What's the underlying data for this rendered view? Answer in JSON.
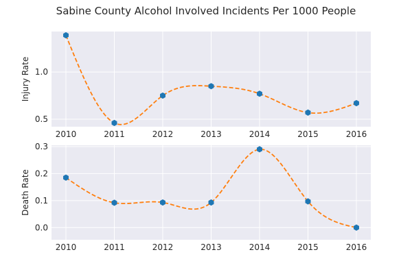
{
  "chart_data": {
    "type": "line",
    "title": "Sabine County Alcohol Involved Incidents Per 1000 People",
    "colors": {
      "marker": "#1f77b4",
      "curve": "#ff7f0e",
      "background": "#eaeaf2"
    },
    "subplots": [
      {
        "id": "injury",
        "ylabel": "Injury Rate",
        "x": [
          2010,
          2011,
          2012,
          2013,
          2014,
          2015,
          2016
        ],
        "xticks": [
          "2010",
          "2011",
          "2012",
          "2013",
          "2014",
          "2015",
          "2016"
        ],
        "values": [
          1.39,
          0.46,
          0.75,
          0.85,
          0.77,
          0.57,
          0.67
        ],
        "ylim": [
          0.42,
          1.43
        ],
        "yticks": [
          0.5,
          1.0
        ],
        "ytick_labels": [
          "0.5",
          "1.0"
        ],
        "marker": "hexagon",
        "fit": "dashed smooth spline"
      },
      {
        "id": "death",
        "ylabel": "Death Rate",
        "x": [
          2010,
          2011,
          2012,
          2013,
          2014,
          2015,
          2016
        ],
        "xticks": [
          "2010",
          "2011",
          "2012",
          "2013",
          "2014",
          "2015",
          "2016"
        ],
        "values": [
          0.185,
          0.092,
          0.093,
          0.093,
          0.29,
          0.097,
          0.0
        ],
        "ylim": [
          -0.045,
          0.305
        ],
        "yticks": [
          0.0,
          0.1,
          0.2,
          0.3
        ],
        "ytick_labels": [
          "0.0",
          "0.1",
          "0.2",
          "0.3"
        ],
        "marker": "hexagon",
        "fit": "dashed smooth spline"
      }
    ]
  }
}
